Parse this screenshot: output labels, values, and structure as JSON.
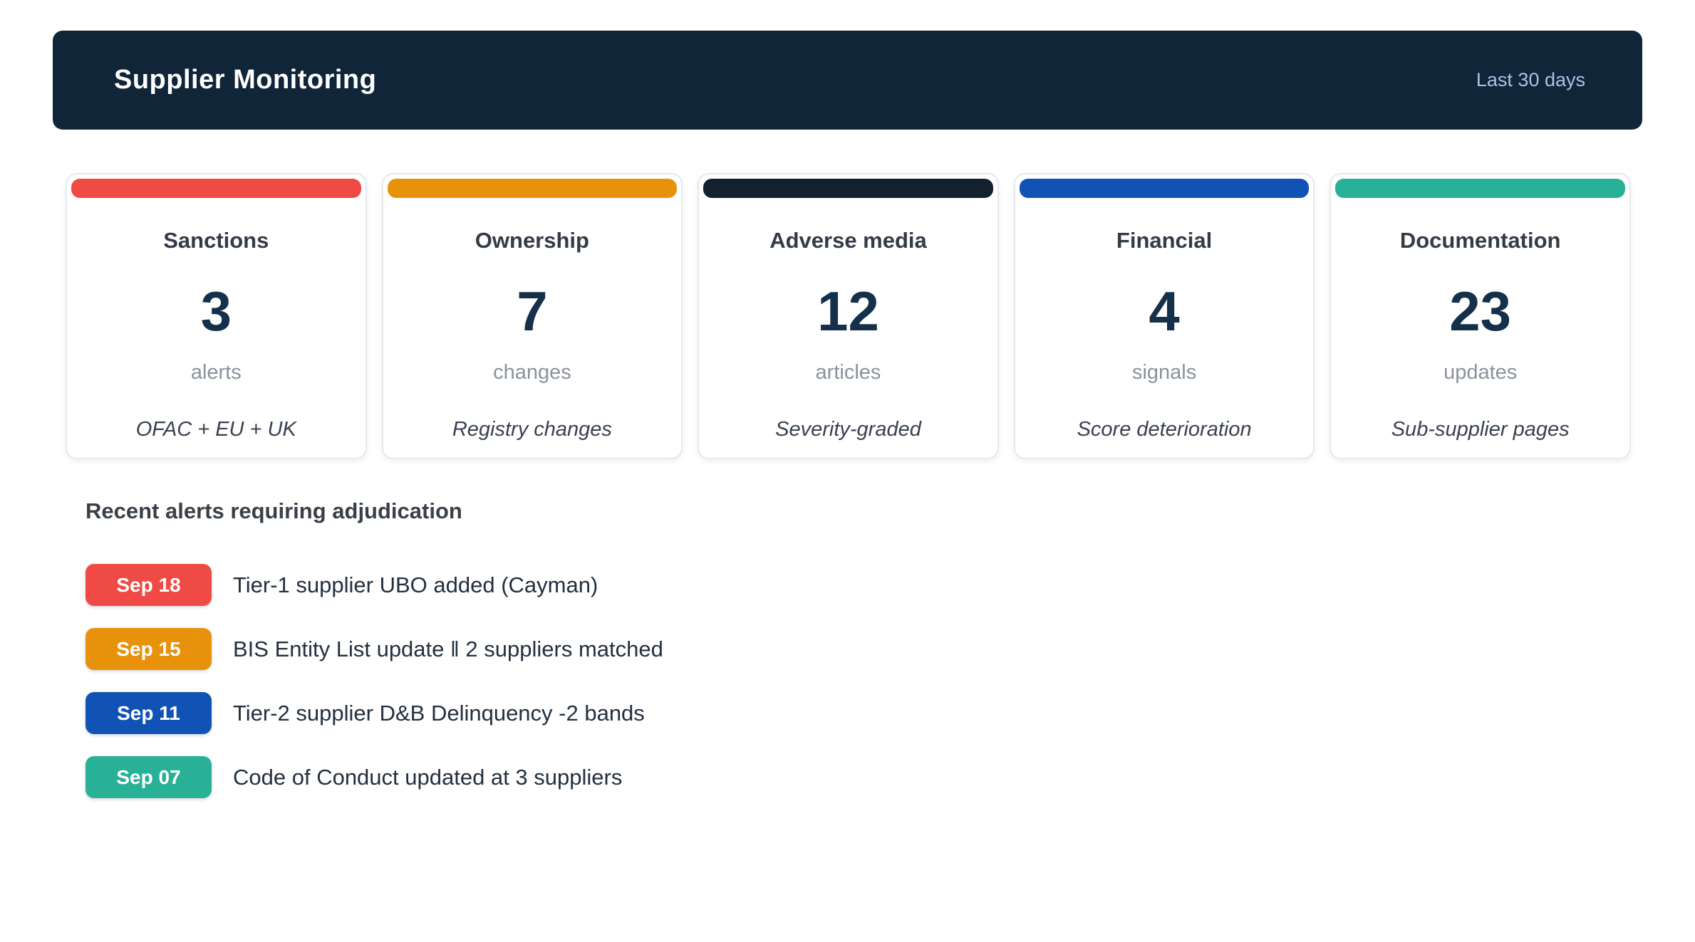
{
  "header": {
    "title": "Supplier Monitoring",
    "period": "Last 30 days"
  },
  "colors": {
    "header_bg": "#102537",
    "period_text": "#a9c3e6"
  },
  "cards": [
    {
      "id": "sanctions",
      "title": "Sanctions",
      "value": 3,
      "unit": "alerts",
      "note": "OFAC + EU + UK",
      "color": "#f04a46"
    },
    {
      "id": "ownership",
      "title": "Ownership",
      "value": 7,
      "unit": "changes",
      "note": "Registry changes",
      "color": "#e8920c"
    },
    {
      "id": "adverse-media",
      "title": "Adverse media",
      "value": 12,
      "unit": "articles",
      "note": "Severity-graded",
      "color": "#13202e"
    },
    {
      "id": "financial",
      "title": "Financial",
      "value": 4,
      "unit": "signals",
      "note": "Score deterioration",
      "color": "#1153b5"
    },
    {
      "id": "documentation",
      "title": "Documentation",
      "value": 23,
      "unit": "updates",
      "note": "Sub-supplier pages",
      "color": "#29b198"
    }
  ],
  "alerts": {
    "heading": "Recent alerts requiring adjudication",
    "items": [
      {
        "date": "Sep 18",
        "text": "Tier-1 supplier UBO added (Cayman)",
        "color": "#f04a46"
      },
      {
        "date": "Sep 15",
        "text": "BIS Entity List update ‖ 2 suppliers matched",
        "color": "#e8920c"
      },
      {
        "date": "Sep 11",
        "text": "Tier-2 supplier D&B Delinquency -2 bands",
        "color": "#1153b5"
      },
      {
        "date": "Sep 07",
        "text": "Code of Conduct updated at 3 suppliers",
        "color": "#29b198"
      }
    ]
  }
}
